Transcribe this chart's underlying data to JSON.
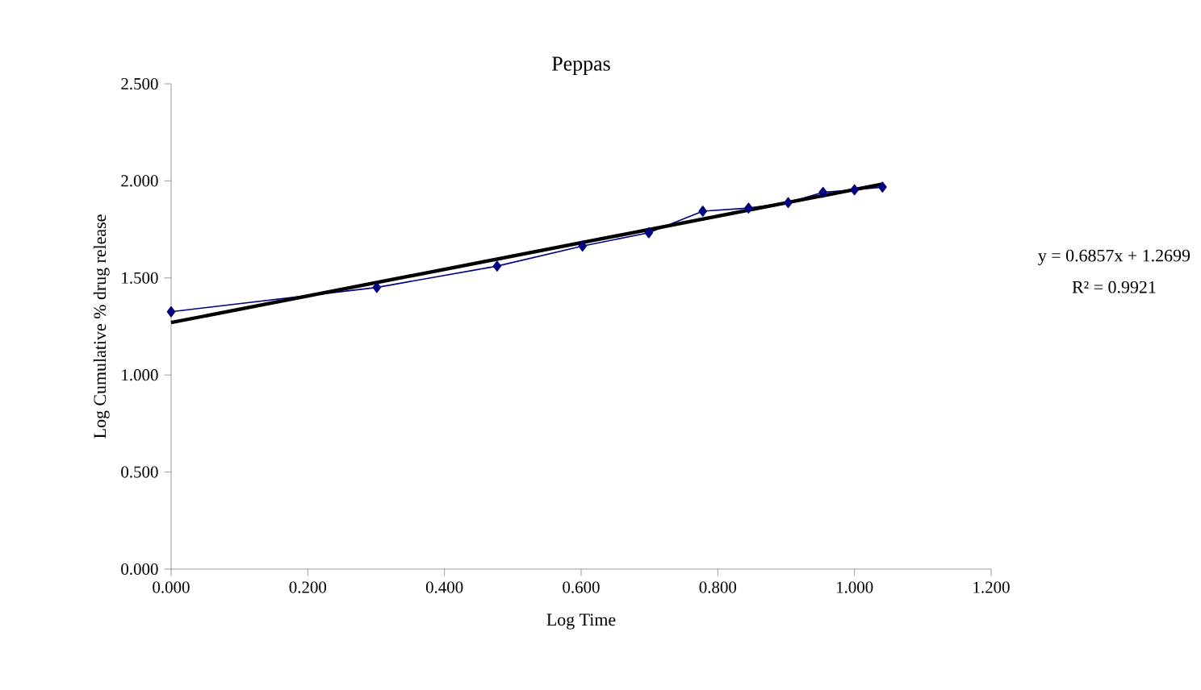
{
  "chart_data": {
    "type": "line",
    "title": "Peppas",
    "xlabel": "Log Time",
    "ylabel": "Log Cumulative % drug release",
    "xlim": [
      0,
      1.2
    ],
    "ylim": [
      0,
      2.5
    ],
    "xticks": [
      {
        "value": 0,
        "label": "0.000"
      },
      {
        "value": 0.2,
        "label": "0.200"
      },
      {
        "value": 0.4,
        "label": "0.400"
      },
      {
        "value": 0.6,
        "label": "0.600"
      },
      {
        "value": 0.8,
        "label": "0.800"
      },
      {
        "value": 1.0,
        "label": "1.000"
      },
      {
        "value": 1.2,
        "label": "1.200"
      }
    ],
    "yticks": [
      {
        "value": 0,
        "label": "0.000"
      },
      {
        "value": 0.5,
        "label": "0.500"
      },
      {
        "value": 1.0,
        "label": "1.000"
      },
      {
        "value": 1.5,
        "label": "1.500"
      },
      {
        "value": 2.0,
        "label": "2.000"
      },
      {
        "value": 2.5,
        "label": "2.500"
      }
    ],
    "grid": false,
    "series": [
      {
        "color": "#000080",
        "marker": "diamond",
        "x": [
          0,
          0.301,
          0.477,
          0.602,
          0.699,
          0.778,
          0.845,
          0.903,
          0.954,
          1.0,
          1.041
        ],
        "values": [
          1.326,
          1.451,
          1.561,
          1.664,
          1.733,
          1.844,
          1.86,
          1.888,
          1.941,
          1.954,
          1.968
        ]
      },
      {
        "color": "#000000",
        "marker": "none",
        "x": [
          0,
          1.041
        ],
        "values": [
          1.2699,
          1.9837
        ]
      }
    ],
    "annotations": [
      "y = 0.6857x + 1.2699",
      "R² = 0.9921"
    ]
  }
}
